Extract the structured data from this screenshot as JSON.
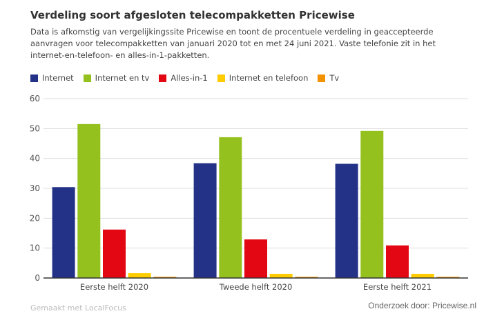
{
  "title": "Verdeling soort afgesloten telecompakketten Pricewise",
  "subtitle": "Data is afkomstig van vergelijkingssite Pricewise en toont de procentuele verdeling in geaccepteerde aanvragen voor telecompakketten van januari 2020 tot en met 24 juni 2021. Vaste telefonie zit in het internet-en-telefoon- en alles-in-1-pakketten.",
  "credit": "Gemaakt met LocalFocus",
  "source": "Onderzoek door: Pricewise.nl",
  "chart_data": {
    "type": "bar",
    "categories": [
      "Eerste helft 2020",
      "Tweede helft 2020",
      "Eerste helft 2021"
    ],
    "series": [
      {
        "name": "Internet",
        "color": "#233287",
        "values": [
          30.4,
          38.4,
          38.2
        ]
      },
      {
        "name": "Internet en tv",
        "color": "#95c11f",
        "values": [
          51.5,
          47.1,
          49.2
        ]
      },
      {
        "name": "Alles-in-1",
        "color": "#e30613",
        "values": [
          16.2,
          12.9,
          10.9
        ]
      },
      {
        "name": "Internet en telefoon",
        "color": "#ffcc00",
        "values": [
          1.6,
          1.4,
          1.4
        ]
      },
      {
        "name": "Tv",
        "color": "#f39200",
        "values": [
          0.4,
          0.4,
          0.4
        ]
      }
    ],
    "ylim": [
      0,
      60
    ],
    "yticks": [
      0,
      10,
      20,
      30,
      40,
      50,
      60
    ],
    "grid": true,
    "legend": "top-left",
    "xlabel": "",
    "ylabel": ""
  }
}
